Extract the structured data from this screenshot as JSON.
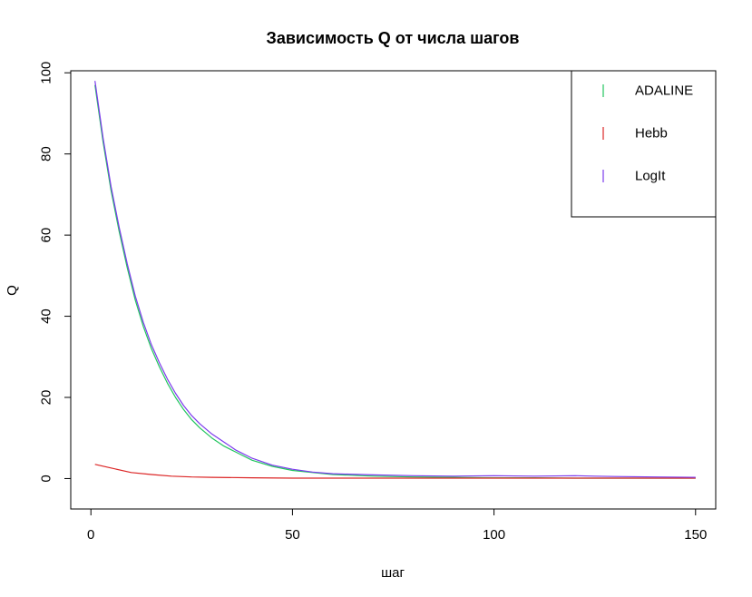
{
  "chart_data": {
    "type": "line",
    "title": "Зависимость Q от числа шагов",
    "xlabel": "шаг",
    "ylabel": "Q",
    "xlim": [
      -5,
      155
    ],
    "ylim": [
      -7.5,
      100.5
    ],
    "x_ticks": [
      "0",
      "50",
      "100",
      "150"
    ],
    "x_tick_values": [
      0,
      50,
      100,
      150
    ],
    "y_ticks": [
      "0",
      "20",
      "40",
      "60",
      "80",
      "100"
    ],
    "y_tick_values": [
      0,
      20,
      40,
      60,
      80,
      100
    ],
    "grid": false,
    "legend_position": "top-right",
    "series": [
      {
        "name": "ADALINE",
        "color": "#22c55e",
        "x": [
          1,
          3,
          5,
          7,
          9,
          11,
          13,
          15,
          17,
          19,
          21,
          23,
          25,
          27,
          30,
          33,
          36,
          40,
          45,
          50,
          55,
          60,
          70,
          80,
          90,
          100,
          110,
          120,
          130,
          140,
          150
        ],
        "y": [
          97,
          83,
          71,
          61,
          52,
          44,
          37.5,
          32,
          27.5,
          23.5,
          20,
          17,
          14.5,
          12.5,
          10,
          8,
          6.5,
          4.5,
          3,
          2,
          1.5,
          1,
          0.6,
          0.4,
          0.3,
          0.2,
          0.2,
          0.1,
          0.1,
          0.1,
          0.1
        ]
      },
      {
        "name": "Hebb",
        "color": "#dc2626",
        "x": [
          1,
          5,
          10,
          15,
          20,
          25,
          30,
          40,
          50,
          60,
          80,
          100,
          120,
          150
        ],
        "y": [
          3.5,
          2.6,
          1.5,
          1.0,
          0.6,
          0.4,
          0.3,
          0.2,
          0.1,
          0.1,
          0.1,
          0.1,
          0.1,
          0.1
        ]
      },
      {
        "name": "LogIt",
        "color": "#7c3aed",
        "x": [
          1,
          3,
          5,
          7,
          9,
          11,
          13,
          15,
          17,
          19,
          21,
          23,
          25,
          27,
          30,
          33,
          36,
          40,
          45,
          50,
          55,
          60,
          70,
          80,
          90,
          100,
          110,
          120,
          125,
          130,
          140,
          150
        ],
        "y": [
          98,
          84,
          72,
          62,
          53,
          45,
          38.5,
          33,
          28.5,
          24.5,
          21,
          18,
          15.5,
          13.5,
          11,
          9,
          7,
          5,
          3.3,
          2.3,
          1.6,
          1.2,
          0.9,
          0.7,
          0.6,
          0.7,
          0.6,
          0.7,
          0.6,
          0.5,
          0.4,
          0.3
        ]
      }
    ]
  }
}
